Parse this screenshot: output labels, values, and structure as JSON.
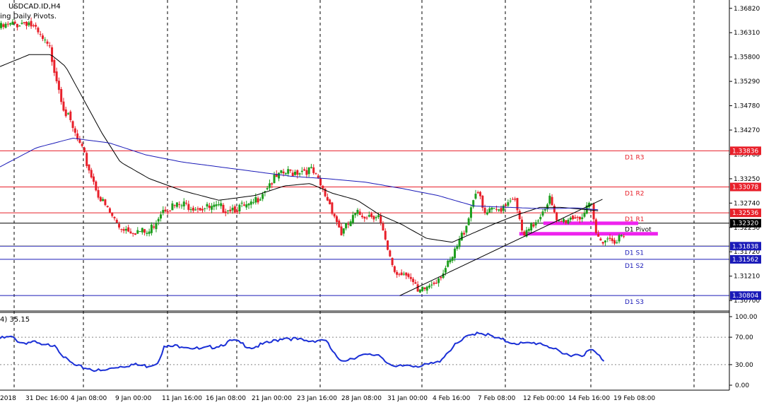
{
  "chart_data": {
    "type": "candlestick",
    "title": "USDCAD.ID,H4",
    "subtitle": "ing Daily Pivots.",
    "colors": {
      "bull": "#1e9e1e",
      "bear": "#e8202a",
      "ma_fast": "#000000",
      "ma_slow": "#1a1ab8",
      "resistance": "#e8202a",
      "support": "#1a1ab8",
      "pivot": "#000000",
      "zone": "#ee22ee",
      "oscillator": "#1a2fd6"
    },
    "y_ticks": [
      "1.36820",
      "1.36310",
      "1.35800",
      "1.35290",
      "1.34780",
      "1.34270",
      "1.33760",
      "1.33250",
      "1.32740",
      "1.32230",
      "1.31720",
      "1.31210",
      "1.30700"
    ],
    "ylim": [
      1.3048,
      1.3695
    ],
    "x_ticks": [
      "2018",
      "31 Dec 16:00",
      "4 Jan 08:00",
      "9 Jan 00:00",
      "11 Jan 16:00",
      "16 Jan 08:00",
      "21 Jan 00:00",
      "23 Jan 16:00",
      "28 Jan 08:00",
      "31 Jan 00:00",
      "4 Feb 16:00",
      "7 Feb 08:00",
      "12 Feb 00:00",
      "14 Feb 16:00",
      "19 Feb 08:00"
    ],
    "pivot_levels": [
      {
        "name": "D1  R3",
        "value": "1.33836",
        "role": "resistance"
      },
      {
        "name": "D1  R2",
        "value": "1.33078",
        "role": "resistance"
      },
      {
        "name": "D1  R1",
        "value": "1.32536",
        "role": "resistance"
      },
      {
        "name": "D1  Pivot",
        "value": "1.32320",
        "role": "pivot"
      },
      {
        "name": "D1  S1",
        "value": "1.31838",
        "role": "support"
      },
      {
        "name": "D1  S2",
        "value": "1.31562",
        "role": "support"
      },
      {
        "name": "D1  S3",
        "value": "1.30804",
        "role": "support"
      }
    ],
    "zones": [
      {
        "x_start": 0.745,
        "x_end": 0.875,
        "value": 1.3231
      },
      {
        "x_start": 0.712,
        "x_end": 0.902,
        "value": 1.3209
      }
    ],
    "trendline": {
      "start": [
        0.548,
        1.308
      ],
      "end": [
        0.826,
        1.3282
      ]
    },
    "anchors": [
      [
        0.0,
        1.364
      ],
      [
        0.04,
        1.3655
      ],
      [
        0.07,
        1.3595
      ],
      [
        0.09,
        1.347
      ],
      [
        0.115,
        1.338
      ],
      [
        0.14,
        1.328
      ],
      [
        0.165,
        1.3225
      ],
      [
        0.205,
        1.321
      ],
      [
        0.225,
        1.3265
      ],
      [
        0.26,
        1.327
      ],
      [
        0.29,
        1.3262
      ],
      [
        0.32,
        1.3265
      ],
      [
        0.345,
        1.3265
      ],
      [
        0.37,
        1.3315
      ],
      [
        0.39,
        1.3335
      ],
      [
        0.42,
        1.3345
      ],
      [
        0.43,
        1.334
      ],
      [
        0.455,
        1.327
      ],
      [
        0.47,
        1.321
      ],
      [
        0.49,
        1.325
      ],
      [
        0.52,
        1.325
      ],
      [
        0.535,
        1.316
      ],
      [
        0.545,
        1.3125
      ],
      [
        0.56,
        1.3132
      ],
      [
        0.575,
        1.3082
      ],
      [
        0.6,
        1.3115
      ],
      [
        0.62,
        1.315
      ],
      [
        0.64,
        1.3225
      ],
      [
        0.655,
        1.3308
      ],
      [
        0.665,
        1.325
      ],
      [
        0.685,
        1.326
      ],
      [
        0.705,
        1.329
      ],
      [
        0.72,
        1.32
      ],
      [
        0.74,
        1.3245
      ],
      [
        0.755,
        1.3285
      ],
      [
        0.765,
        1.323
      ],
      [
        0.785,
        1.3245
      ],
      [
        0.8,
        1.3248
      ],
      [
        0.812,
        1.3268
      ],
      [
        0.82,
        1.32
      ]
    ],
    "sma_fast_anchors": [
      [
        0.0,
        1.356
      ],
      [
        0.04,
        1.3585
      ],
      [
        0.07,
        1.3585
      ],
      [
        0.09,
        1.356
      ],
      [
        0.115,
        1.349
      ],
      [
        0.14,
        1.342
      ],
      [
        0.165,
        1.336
      ],
      [
        0.205,
        1.3325
      ],
      [
        0.25,
        1.33
      ],
      [
        0.3,
        1.328
      ],
      [
        0.35,
        1.329
      ],
      [
        0.39,
        1.331
      ],
      [
        0.425,
        1.3315
      ],
      [
        0.455,
        1.3295
      ],
      [
        0.49,
        1.328
      ],
      [
        0.52,
        1.325
      ],
      [
        0.55,
        1.323
      ],
      [
        0.585,
        1.32
      ],
      [
        0.62,
        1.3192
      ],
      [
        0.65,
        1.3212
      ],
      [
        0.68,
        1.3232
      ],
      [
        0.71,
        1.325
      ],
      [
        0.74,
        1.3265
      ],
      [
        0.77,
        1.3265
      ],
      [
        0.82,
        1.3258
      ]
    ],
    "sma_slow_anchors": [
      [
        0.0,
        1.335
      ],
      [
        0.05,
        1.339
      ],
      [
        0.1,
        1.341
      ],
      [
        0.15,
        1.34
      ],
      [
        0.2,
        1.3375
      ],
      [
        0.25,
        1.336
      ],
      [
        0.3,
        1.335
      ],
      [
        0.35,
        1.334
      ],
      [
        0.4,
        1.333
      ],
      [
        0.45,
        1.3325
      ],
      [
        0.5,
        1.3318
      ],
      [
        0.55,
        1.3305
      ],
      [
        0.6,
        1.329
      ],
      [
        0.65,
        1.3268
      ],
      [
        0.7,
        1.3265
      ],
      [
        0.75,
        1.3262
      ],
      [
        0.79,
        1.3264
      ],
      [
        0.82,
        1.326
      ]
    ],
    "oscillator": {
      "label": "4) 35.15",
      "y_ticks": [
        "100.00",
        "70.00",
        "30.00",
        "0.00"
      ],
      "ylim": [
        0,
        100
      ],
      "anchors": [
        [
          0.0,
          68
        ],
        [
          0.015,
          70
        ],
        [
          0.03,
          62
        ],
        [
          0.045,
          63
        ],
        [
          0.06,
          57
        ],
        [
          0.075,
          60
        ],
        [
          0.09,
          38
        ],
        [
          0.105,
          27
        ],
        [
          0.12,
          25
        ],
        [
          0.14,
          20
        ],
        [
          0.16,
          27
        ],
        [
          0.18,
          30
        ],
        [
          0.2,
          28
        ],
        [
          0.215,
          32
        ],
        [
          0.225,
          55
        ],
        [
          0.25,
          58
        ],
        [
          0.275,
          52
        ],
        [
          0.3,
          58
        ],
        [
          0.32,
          65
        ],
        [
          0.345,
          55
        ],
        [
          0.37,
          62
        ],
        [
          0.39,
          70
        ],
        [
          0.42,
          64
        ],
        [
          0.445,
          67
        ],
        [
          0.465,
          35
        ],
        [
          0.49,
          42
        ],
        [
          0.52,
          45
        ],
        [
          0.54,
          25
        ],
        [
          0.56,
          30
        ],
        [
          0.58,
          28
        ],
        [
          0.6,
          33
        ],
        [
          0.62,
          55
        ],
        [
          0.64,
          70
        ],
        [
          0.655,
          78
        ],
        [
          0.665,
          75
        ],
        [
          0.68,
          68
        ],
        [
          0.7,
          63
        ],
        [
          0.72,
          60
        ],
        [
          0.74,
          62
        ],
        [
          0.755,
          56
        ],
        [
          0.77,
          45
        ],
        [
          0.8,
          45
        ],
        [
          0.812,
          52
        ],
        [
          0.815,
          48
        ],
        [
          0.83,
          35
        ]
      ]
    }
  }
}
